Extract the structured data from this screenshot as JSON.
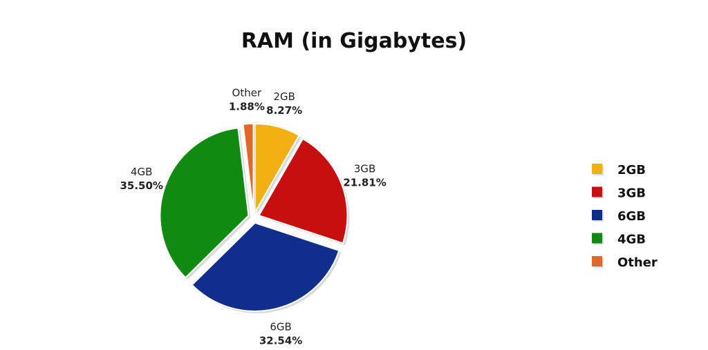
{
  "chart_data": {
    "type": "pie",
    "title": "RAM (in Gigabytes)",
    "start": "top, clockwise",
    "exploded": true,
    "legend_position": "right",
    "slices": [
      {
        "label": "2GB",
        "value": 8.27,
        "pct_label": "8.27%",
        "color": "#f2b013"
      },
      {
        "label": "3GB",
        "value": 21.81,
        "pct_label": "21.81%",
        "color": "#c80f0f"
      },
      {
        "label": "6GB",
        "value": 32.54,
        "pct_label": "32.54%",
        "color": "#102f8c"
      },
      {
        "label": "4GB",
        "value": 35.5,
        "pct_label": "35.50%",
        "color": "#118a11"
      },
      {
        "label": "Other",
        "value": 1.88,
        "pct_label": "1.88%",
        "color": "#e0692a"
      }
    ]
  }
}
